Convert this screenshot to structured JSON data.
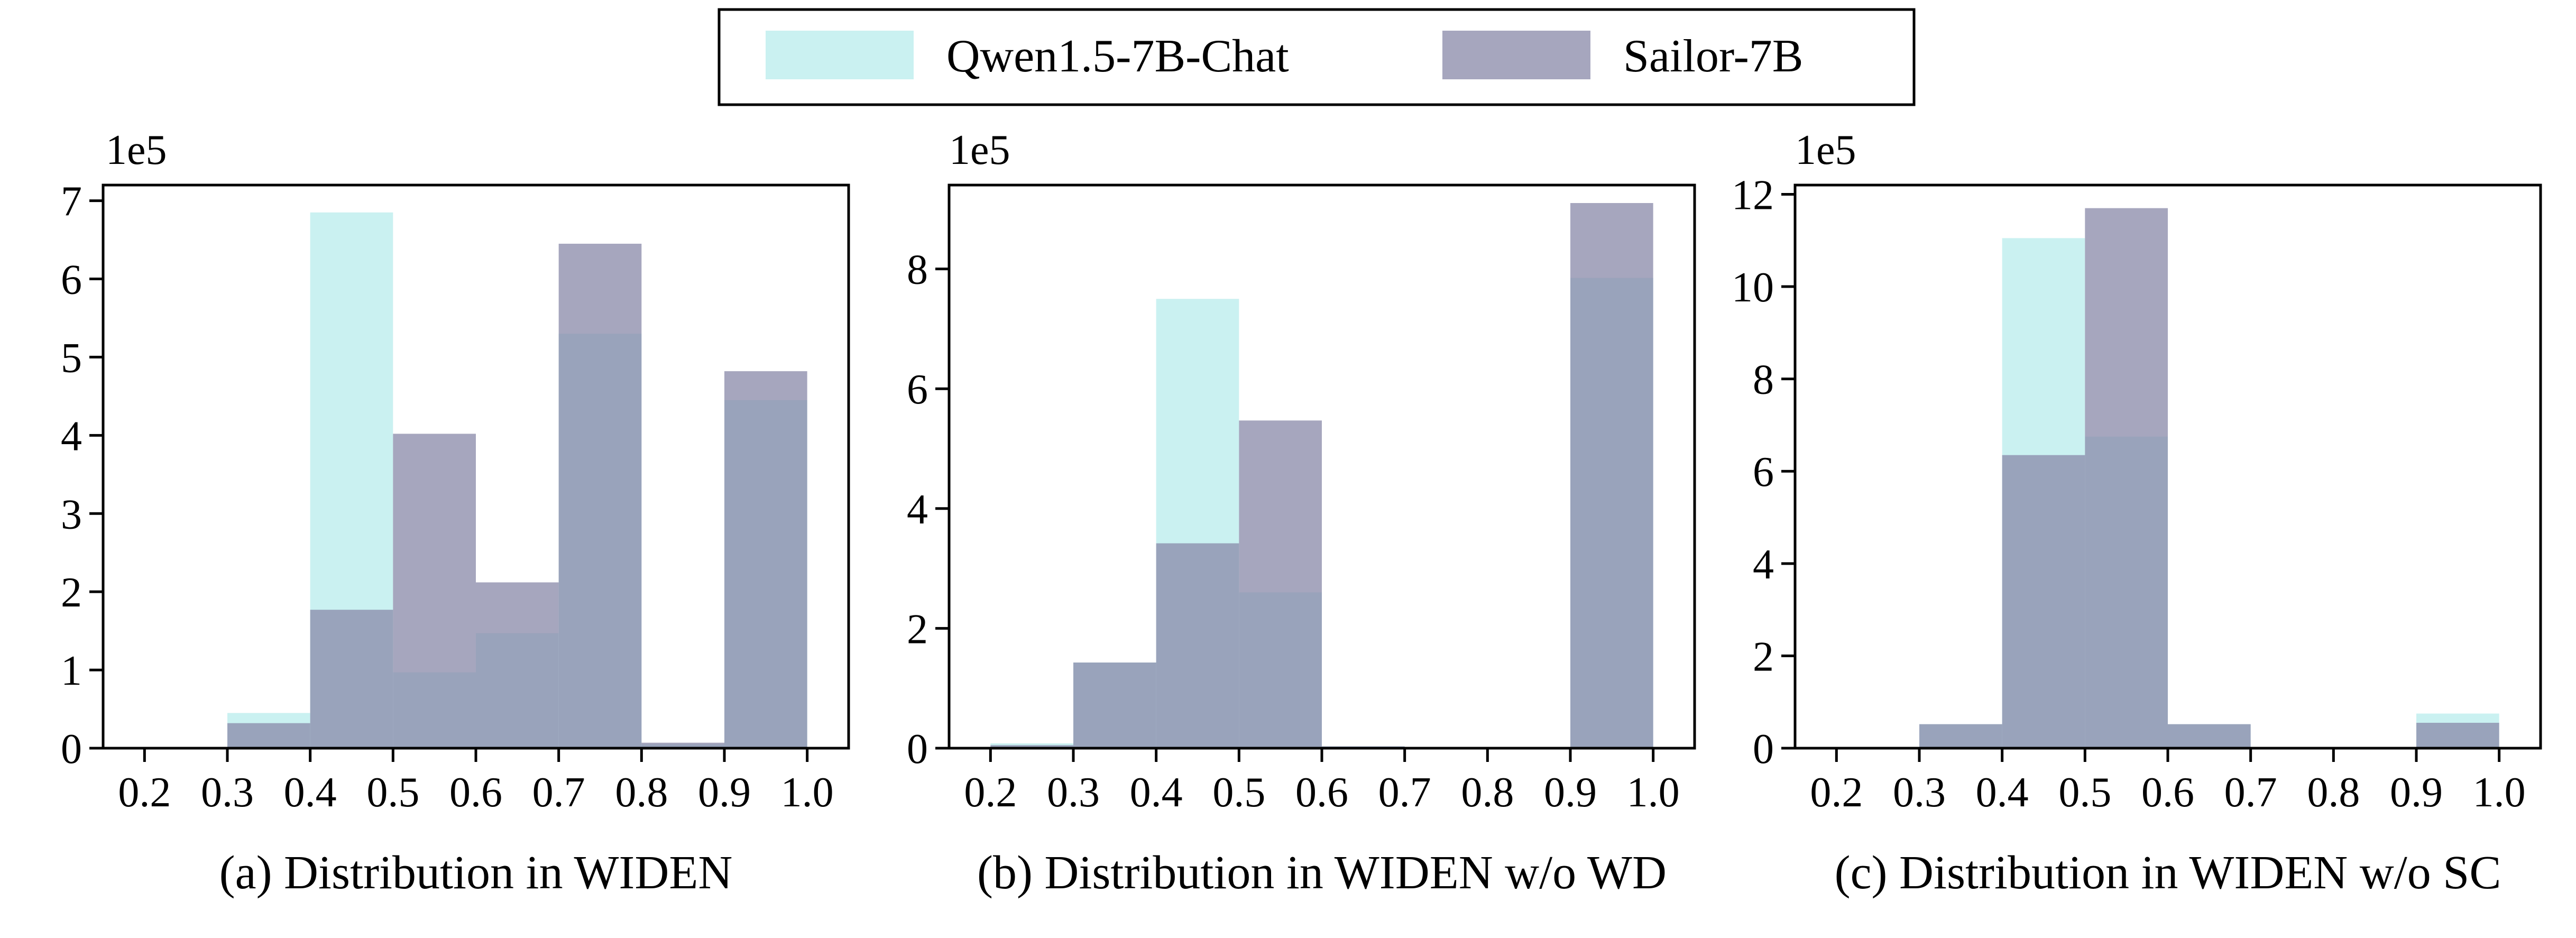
{
  "legend": {
    "entries": [
      {
        "label": "Qwen1.5-7B-Chat",
        "color": "#b8ecec"
      },
      {
        "label": "Sailor-7B",
        "color": "#8888a8"
      }
    ],
    "placement": "top-center"
  },
  "chart_data": [
    {
      "type": "histogram",
      "xlabel": "(a) Distribution in WIDEN",
      "scale_label": "1e5",
      "xlim": [
        0.15,
        1.05
      ],
      "ylim": [
        0,
        7.2
      ],
      "x_ticks": [
        "0.2",
        "0.3",
        "0.4",
        "0.5",
        "0.6",
        "0.7",
        "0.8",
        "0.9",
        "1.0"
      ],
      "x_tick_values": [
        0.2,
        0.3,
        0.4,
        0.5,
        0.6,
        0.7,
        0.8,
        0.9,
        1.0
      ],
      "y_ticks": [
        "0",
        "1",
        "2",
        "3",
        "4",
        "5",
        "6",
        "7"
      ],
      "y_tick_values": [
        0,
        1,
        2,
        3,
        4,
        5,
        6,
        7
      ],
      "bin_edges": [
        0.2,
        0.3,
        0.4,
        0.5,
        0.6,
        0.7,
        0.8,
        0.9,
        1.0
      ],
      "series": [
        {
          "name": "Qwen1.5-7B-Chat",
          "values": [
            0,
            0.45,
            6.85,
            0.97,
            1.47,
            5.3,
            0.05,
            4.45
          ]
        },
        {
          "name": "Sailor-7B",
          "values": [
            0,
            0.32,
            1.77,
            4.02,
            2.12,
            6.45,
            0.07,
            4.82
          ]
        }
      ]
    },
    {
      "type": "histogram",
      "xlabel": "(b) Distribution in WIDEN w/o WD",
      "scale_label": "1e5",
      "xlim": [
        0.15,
        1.05
      ],
      "ylim": [
        0,
        9.4
      ],
      "x_ticks": [
        "0.2",
        "0.3",
        "0.4",
        "0.5",
        "0.6",
        "0.7",
        "0.8",
        "0.9",
        "1.0"
      ],
      "x_tick_values": [
        0.2,
        0.3,
        0.4,
        0.5,
        0.6,
        0.7,
        0.8,
        0.9,
        1.0
      ],
      "y_ticks": [
        "0",
        "2",
        "4",
        "6",
        "8"
      ],
      "y_tick_values": [
        0,
        2,
        4,
        6,
        8
      ],
      "bin_edges": [
        0.2,
        0.3,
        0.4,
        0.5,
        0.6,
        0.7,
        0.8,
        0.9,
        1.0
      ],
      "series": [
        {
          "name": "Qwen1.5-7B-Chat",
          "values": [
            0.08,
            1.43,
            7.5,
            2.6,
            0.03,
            0,
            0,
            7.85
          ]
        },
        {
          "name": "Sailor-7B",
          "values": [
            0.05,
            1.43,
            3.42,
            5.47,
            0.03,
            0,
            0,
            9.1
          ]
        }
      ]
    },
    {
      "type": "histogram",
      "xlabel": "(c) Distribution in WIDEN w/o SC",
      "scale_label": "1e5",
      "xlim": [
        0.15,
        1.05
      ],
      "ylim": [
        0,
        12.2
      ],
      "x_ticks": [
        "0.2",
        "0.3",
        "0.4",
        "0.5",
        "0.6",
        "0.7",
        "0.8",
        "0.9",
        "1.0"
      ],
      "x_tick_values": [
        0.2,
        0.3,
        0.4,
        0.5,
        0.6,
        0.7,
        0.8,
        0.9,
        1.0
      ],
      "y_ticks": [
        "0",
        "2",
        "4",
        "6",
        "8",
        "10",
        "12"
      ],
      "y_tick_values": [
        0,
        2,
        4,
        6,
        8,
        10,
        12
      ],
      "bin_edges": [
        0.2,
        0.3,
        0.4,
        0.5,
        0.6,
        0.7,
        0.8,
        0.9,
        1.0
      ],
      "series": [
        {
          "name": "Qwen1.5-7B-Chat",
          "values": [
            0,
            0.52,
            11.05,
            6.75,
            0.52,
            0,
            0,
            0.75
          ]
        },
        {
          "name": "Sailor-7B",
          "values": [
            0,
            0.52,
            6.35,
            11.7,
            0.52,
            0,
            0,
            0.55
          ]
        }
      ]
    }
  ]
}
